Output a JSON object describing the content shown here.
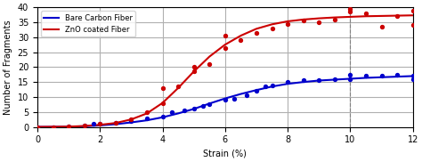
{
  "chart_data": {
    "type": "line",
    "xlabel": "Strain (%)",
    "ylabel": "Number of Fragments",
    "xlim": [
      0,
      12
    ],
    "ylim": [
      0,
      40
    ],
    "xticks": [
      0,
      2,
      4,
      6,
      8,
      10,
      12
    ],
    "yticks": [
      0,
      5,
      10,
      15,
      20,
      25,
      30,
      35,
      40
    ],
    "grid": true,
    "legend": "upper left",
    "vlines": [
      10
    ],
    "series": [
      {
        "type": "scatter",
        "color": "#0000cc",
        "x": [
          0.0,
          0.5,
          1.0,
          1.5,
          1.8,
          2.0,
          2.5,
          3.0,
          3.5,
          4.0,
          4.3,
          4.7,
          5.0,
          5.3,
          5.5,
          6.0,
          6.3,
          6.7,
          7.0,
          7.3,
          7.5,
          8.0,
          8.5,
          9.0,
          9.5,
          10.0,
          10.0,
          10.5,
          11.0,
          11.5,
          12.0,
          12.0
        ],
        "values": [
          0.0,
          0.0,
          0.1,
          0.5,
          1.0,
          1.2,
          1.5,
          2.0,
          2.8,
          3.5,
          5.0,
          5.5,
          6.0,
          7.0,
          7.5,
          9.0,
          9.5,
          10.5,
          12.0,
          13.5,
          14.0,
          15.0,
          15.5,
          15.5,
          16.0,
          16.0,
          17.5,
          17.0,
          17.0,
          17.5,
          17.0,
          16.0
        ]
      },
      {
        "type": "scatter",
        "color": "#cc0000",
        "x": [
          0.0,
          0.5,
          1.0,
          1.5,
          2.0,
          2.5,
          3.0,
          3.5,
          4.0,
          4.0,
          4.5,
          5.0,
          5.0,
          5.5,
          6.0,
          6.0,
          6.5,
          7.0,
          7.5,
          8.0,
          8.5,
          9.0,
          9.5,
          10.0,
          10.0,
          10.5,
          11.0,
          11.5,
          12.0,
          12.0
        ],
        "values": [
          0.0,
          0.0,
          0.2,
          0.5,
          1.0,
          1.5,
          2.5,
          5.0,
          8.0,
          13.0,
          13.5,
          18.5,
          20.0,
          21.0,
          26.5,
          30.5,
          29.0,
          31.5,
          33.0,
          34.5,
          35.5,
          35.0,
          36.0,
          39.5,
          38.5,
          38.0,
          33.5,
          37.0,
          39.0,
          34.0
        ]
      },
      {
        "type": "line",
        "name": "Bare Carbon Fiber",
        "color": "#0000cc",
        "x": [
          0.0,
          0.3,
          0.6,
          1.0,
          1.5,
          2.0,
          2.5,
          3.0,
          3.5,
          4.0,
          4.5,
          5.0,
          5.5,
          6.0,
          6.5,
          7.0,
          7.5,
          8.0,
          8.5,
          9.0,
          9.5,
          10.0,
          10.5,
          11.0,
          11.5,
          12.0
        ],
        "values": [
          0.0,
          0.01,
          0.03,
          0.08,
          0.2,
          0.5,
          0.9,
          1.5,
          2.2,
          3.2,
          4.5,
          6.0,
          7.8,
          9.5,
          11.0,
          12.3,
          13.5,
          14.4,
          15.0,
          15.5,
          15.8,
          16.1,
          16.4,
          16.6,
          16.8,
          17.0
        ]
      },
      {
        "type": "line",
        "name": "ZnO coated Fiber",
        "color": "#cc0000",
        "x": [
          0.0,
          0.3,
          0.6,
          1.0,
          1.5,
          2.0,
          2.5,
          3.0,
          3.5,
          4.0,
          4.5,
          5.0,
          5.5,
          6.0,
          6.5,
          7.0,
          7.5,
          8.0,
          8.5,
          9.0,
          9.5,
          10.0,
          10.5,
          11.0,
          11.5,
          12.0
        ],
        "values": [
          0.0,
          0.02,
          0.05,
          0.1,
          0.3,
          0.7,
          1.3,
          2.5,
          4.5,
          8.0,
          13.0,
          18.5,
          23.5,
          27.5,
          30.5,
          32.8,
          34.3,
          35.3,
          35.9,
          36.3,
          36.6,
          36.8,
          37.0,
          37.1,
          37.2,
          37.3
        ]
      }
    ]
  }
}
